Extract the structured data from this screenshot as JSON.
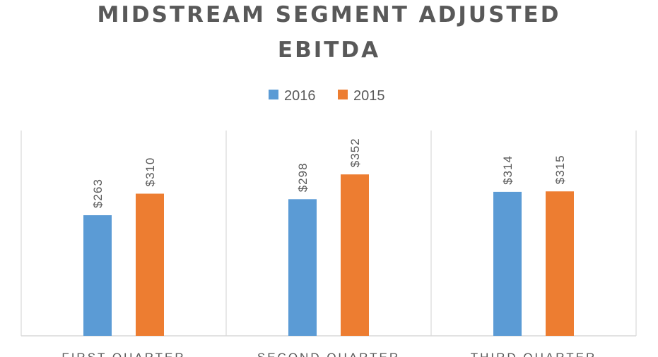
{
  "chart_data": {
    "type": "bar",
    "title_line1": "MIDSTREAM SEGMENT ADJUSTED",
    "title_line2": "EBITDA",
    "categories": [
      "FIRST QUARTER",
      "SECOND QUARTER",
      "THIRD QUARTER"
    ],
    "series": [
      {
        "name": "2016",
        "color": "#5B9BD5",
        "values": [
          263,
          298,
          314
        ],
        "labels": [
          "$263",
          "$298",
          "$314"
        ]
      },
      {
        "name": "2015",
        "color": "#ED7D31",
        "values": [
          310,
          352,
          315
        ],
        "labels": [
          "$310",
          "$352",
          "$315"
        ]
      }
    ],
    "ylim": [
      0,
      400
    ],
    "grid": false,
    "legend_position": "top"
  }
}
